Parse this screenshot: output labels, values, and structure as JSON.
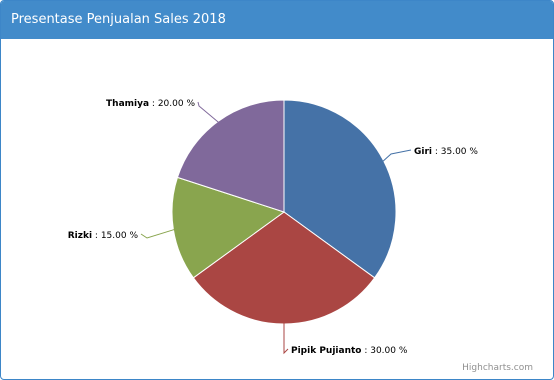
{
  "panel": {
    "title": "Presentase Penjualan Sales 2018"
  },
  "chart_data": {
    "type": "pie",
    "title": "",
    "slices": [
      {
        "name": "Giri",
        "value": 35.0,
        "label_suffix": " : 35.00 %",
        "color": "#4572A7"
      },
      {
        "name": "Pipik Pujianto",
        "value": 30.0,
        "label_suffix": " : 30.00 %",
        "color": "#AA4643"
      },
      {
        "name": "Rizki",
        "value": 15.0,
        "label_suffix": " : 15.00 %",
        "color": "#89A54E"
      },
      {
        "name": "Thamiya",
        "value": 20.0,
        "label_suffix": " : 20.00 %",
        "color": "#80699B"
      }
    ],
    "start_angle_deg": 0,
    "direction": "clockwise",
    "credits": "Highcharts.com"
  }
}
